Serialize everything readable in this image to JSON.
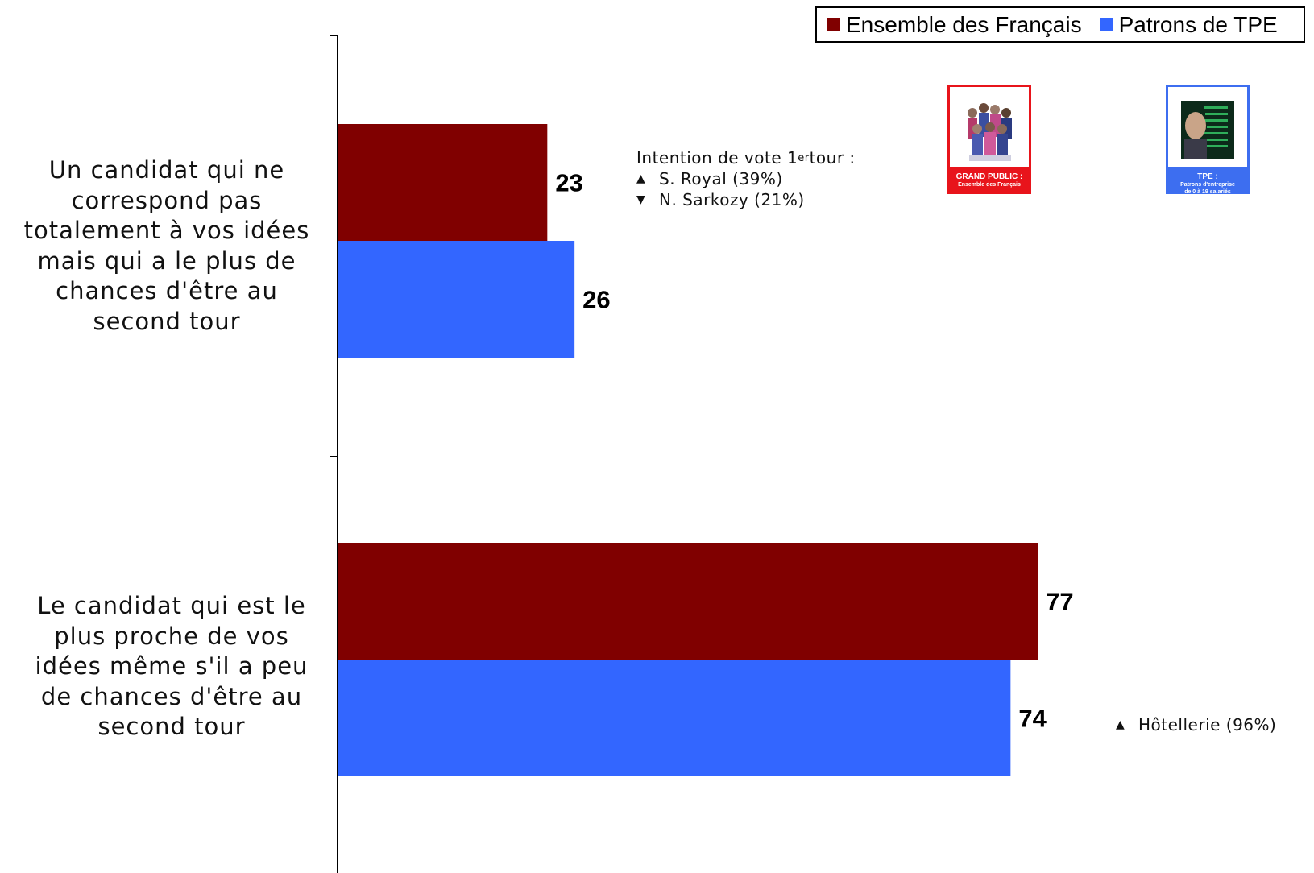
{
  "chart_data": {
    "type": "bar",
    "orientation": "horizontal",
    "categories": [
      "Un candidat qui ne correspond pas totalement à vos idées mais qui a le plus de chances d'être au second tour",
      "Le candidat qui est le plus proche de vos idées même s'il a peu de chances d'être au second tour"
    ],
    "series": [
      {
        "name": "Ensemble des Français",
        "values": [
          23,
          77
        ],
        "color": "#800000"
      },
      {
        "name": "Patrons de TPE",
        "values": [
          26,
          74
        ],
        "color": "#3366ff"
      }
    ],
    "xlim": [
      0,
      100
    ],
    "grid": false,
    "legend_position": "top-right",
    "data_labels": true
  },
  "category_lines": [
    [
      "Un candidat qui ne",
      "correspond pas",
      "totalement à vos idées",
      "mais qui a le plus de",
      "chances d'être au",
      "second tour"
    ],
    [
      "Le candidat qui est le",
      "plus proche de vos",
      "idées même s'il a peu",
      "de chances d'être au",
      "second tour"
    ]
  ],
  "annotations": {
    "vote_title_pre": "Intention de vote 1",
    "vote_title_sup": "er",
    "vote_title_post": " tour :",
    "royal": "S. Royal (39%)",
    "sarkozy": "N. Sarkozy (21%)",
    "hotellerie": "Hôtellerie (96%)",
    "up_icon": "triangle-up-icon",
    "down_icon": "triangle-down-icon"
  },
  "badges": {
    "grand_public": {
      "title": "GRAND PUBLIC :",
      "subtitle": "Ensemble des Français",
      "color": "#e8141b"
    },
    "tpe": {
      "title": "TPE :",
      "subtitle_1": "Patrons d'entreprise",
      "subtitle_2": "de 0 à 19 salariés",
      "color": "#3d6ef0"
    }
  }
}
